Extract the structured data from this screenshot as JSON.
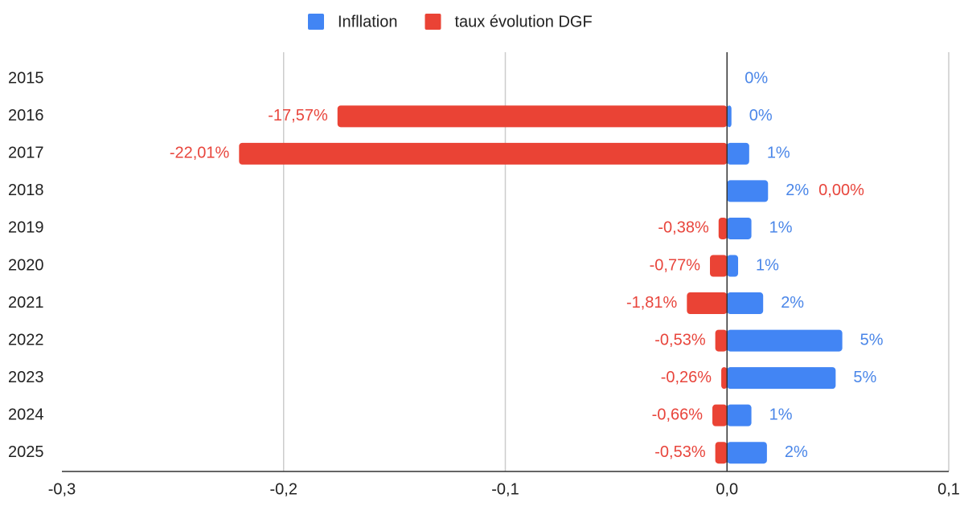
{
  "chart_data": {
    "type": "bar",
    "orientation": "horizontal",
    "categories": [
      "2015",
      "2016",
      "2017",
      "2018",
      "2019",
      "2020",
      "2021",
      "2022",
      "2023",
      "2024",
      "2025"
    ],
    "series": [
      {
        "name": "Infllation",
        "color": "#4285f4",
        "values": [
          0,
          0.002,
          0.01,
          0.0185,
          0.011,
          0.005,
          0.0163,
          0.052,
          0.049,
          0.011,
          0.018
        ],
        "value_labels": [
          "0%",
          "0%",
          "1%",
          "2%",
          "1%",
          "1%",
          "2%",
          "5%",
          "5%",
          "1%",
          "2%"
        ]
      },
      {
        "name": "taux évolution DGF",
        "color": "#ea4335",
        "values": [
          null,
          -0.1757,
          -0.2201,
          0,
          -0.0038,
          -0.0077,
          -0.0181,
          -0.0053,
          -0.0026,
          -0.0066,
          -0.0053
        ],
        "value_labels": [
          null,
          "-17,57%",
          "-22,01%",
          "0,00%",
          "-0,38%",
          "-0,77%",
          "-1,81%",
          "-0,53%",
          "-0,26%",
          "-0,66%",
          "-0,53%"
        ]
      }
    ],
    "xlim": [
      -0.3,
      0.1
    ],
    "xticks": [
      {
        "value": -0.3,
        "label": "-0,3"
      },
      {
        "value": -0.2,
        "label": "-0,2"
      },
      {
        "value": -0.1,
        "label": "-0,1"
      },
      {
        "value": 0,
        "label": "0,0"
      },
      {
        "value": 0.1,
        "label": "0,1"
      }
    ],
    "grid": true,
    "legend": "top"
  }
}
